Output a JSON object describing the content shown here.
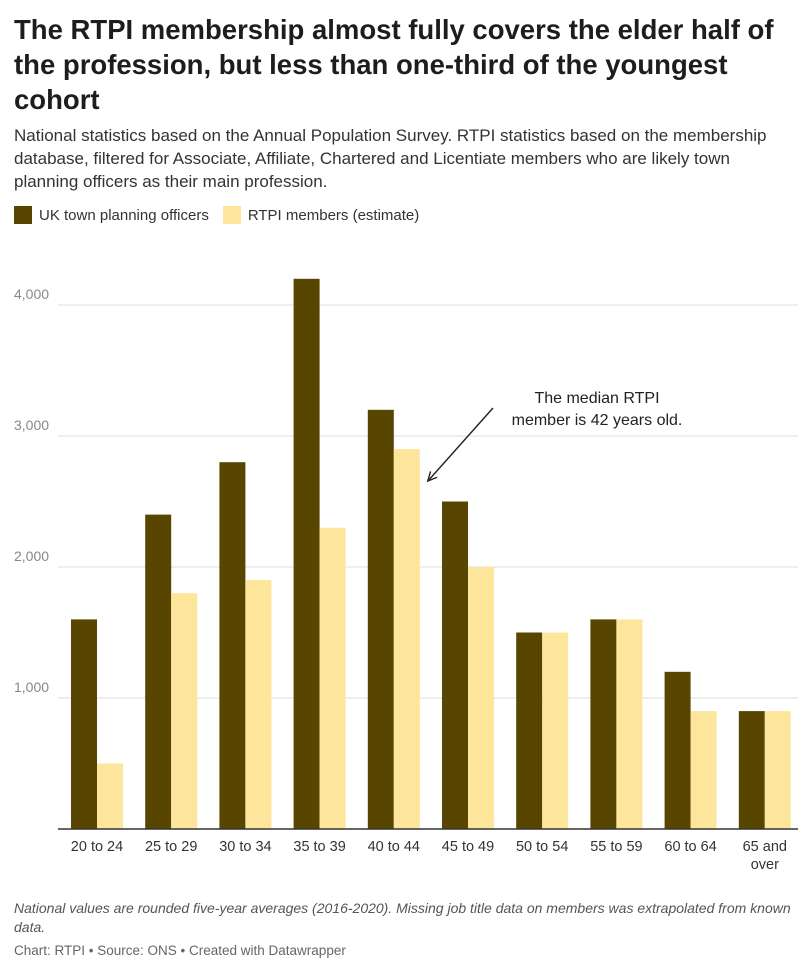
{
  "title": "The RTPI membership almost fully covers the elder half of the profession, but less than one-third of the youngest cohort",
  "subtitle": "National statistics based on the Annual Population Survey. RTPI statistics based on the membership database, filtered for Associate, Affiliate, Chartered and Licentiate members who are likely town planning officers as their main profession.",
  "notes": "National values are rounded five-year averages (2016-2020). Missing job title data on members was extrapolated from known data.",
  "credit": "Chart: RTPI • Source: ONS • Created with Datawrapper",
  "colors": {
    "uk_officers": "#574500",
    "rtpi_members": "#fee59c",
    "gridline": "#dedede",
    "axis": "#333333",
    "tick_text": "#888888"
  },
  "chart_data": {
    "type": "bar",
    "categories": [
      "20 to 24",
      "25 to 29",
      "30 to 34",
      "35 to 39",
      "40 to 44",
      "45 to 49",
      "50 to 54",
      "55 to 59",
      "60 to 64",
      "65 and over"
    ],
    "category_tick_lines": [
      [
        "20 to 24"
      ],
      [
        "25 to 29"
      ],
      [
        "30 to 34"
      ],
      [
        "35 to 39"
      ],
      [
        "40 to 44"
      ],
      [
        "45 to 49"
      ],
      [
        "50 to 54"
      ],
      [
        "55 to 59"
      ],
      [
        "60 to 64"
      ],
      [
        "65 and",
        "over"
      ]
    ],
    "series": [
      {
        "name": "UK town planning officers",
        "values": [
          1600,
          2400,
          2800,
          4200,
          3200,
          2500,
          1500,
          1600,
          1200,
          900
        ]
      },
      {
        "name": "RTPI members (estimate)",
        "values": [
          500,
          1800,
          1900,
          2300,
          2900,
          2000,
          1500,
          1600,
          900,
          900
        ]
      }
    ],
    "yticks": [
      1000,
      2000,
      3000,
      4000
    ],
    "ytick_labels": [
      "1,000",
      "2,000",
      "3,000",
      "4,000"
    ],
    "ylim": [
      0,
      4000
    ],
    "grid": true,
    "legend_position": "top-left",
    "annotation": {
      "lines": [
        "The median RTPI",
        "member is 42 years old."
      ],
      "target_category": "40 to 44",
      "target_series": "RTPI members (estimate)"
    }
  }
}
